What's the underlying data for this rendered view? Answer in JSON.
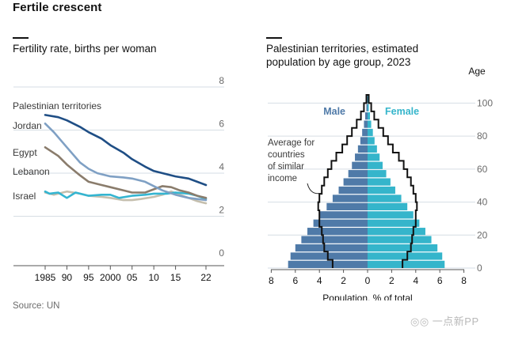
{
  "title": "Fertile crescent",
  "source": "Source: UN",
  "watermark": "◎◎ 一点新PP",
  "colors": {
    "palestinian": "#1f4e85",
    "jordan": "#7fa0c4",
    "egypt": "#8a7c6c",
    "lebanon": "#c5bfae",
    "israel": "#34b5d1",
    "male": "#4f7aa8",
    "female": "#35b5cb",
    "avg": "#111111",
    "grid": "#d6dee4",
    "text": "#121212",
    "axis_text": "#6b6b6b"
  },
  "chart_data": [
    {
      "type": "line",
      "title": "Fertility rate, births per woman",
      "x_tick_labels": [
        "1985",
        "90",
        "95",
        "2000",
        "05",
        "10",
        "15",
        "22"
      ],
      "x_tick_values": [
        1985,
        1990,
        1995,
        2000,
        2005,
        2010,
        2015,
        2022
      ],
      "xlim": [
        1985,
        2022
      ],
      "ylim": [
        0,
        8
      ],
      "y_ticks": [
        0,
        2,
        4,
        6,
        8
      ],
      "grid": true,
      "series": [
        {
          "name": "Palestinian territories",
          "key": "palestinian",
          "x": [
            1985,
            1988,
            1990,
            1993,
            1995,
            1998,
            2000,
            2003,
            2005,
            2008,
            2010,
            2013,
            2015,
            2018,
            2020,
            2022
          ],
          "y": [
            6.7,
            6.6,
            6.45,
            6.15,
            5.9,
            5.6,
            5.3,
            4.95,
            4.65,
            4.3,
            4.1,
            3.95,
            3.85,
            3.75,
            3.6,
            3.45
          ]
        },
        {
          "name": "Jordan",
          "key": "jordan",
          "x": [
            1985,
            1987,
            1990,
            1993,
            1995,
            1997,
            2000,
            2003,
            2005,
            2008,
            2010,
            2012,
            2015,
            2018,
            2020,
            2022
          ],
          "y": [
            6.3,
            5.9,
            5.2,
            4.5,
            4.2,
            4.0,
            3.85,
            3.8,
            3.75,
            3.6,
            3.4,
            3.2,
            3.0,
            2.85,
            2.8,
            2.75
          ]
        },
        {
          "name": "Egypt",
          "key": "egypt",
          "x": [
            1985,
            1988,
            1990,
            1993,
            1995,
            1998,
            2000,
            2003,
            2005,
            2008,
            2010,
            2012,
            2014,
            2016,
            2018,
            2020,
            2022
          ],
          "y": [
            5.2,
            4.8,
            4.4,
            3.9,
            3.6,
            3.45,
            3.35,
            3.2,
            3.1,
            3.1,
            3.25,
            3.4,
            3.35,
            3.2,
            3.1,
            2.95,
            2.85
          ]
        },
        {
          "name": "Lebanon",
          "key": "lebanon",
          "x": [
            1985,
            1987,
            1990,
            1993,
            1995,
            1998,
            2000,
            2003,
            2005,
            2007,
            2010,
            2012,
            2014,
            2016,
            2018,
            2020,
            2022
          ],
          "y": [
            3.1,
            3.0,
            3.15,
            3.05,
            2.95,
            2.9,
            2.85,
            2.75,
            2.75,
            2.8,
            2.9,
            3.0,
            3.15,
            3.0,
            2.85,
            2.7,
            2.6
          ]
        },
        {
          "name": "Israel",
          "key": "israel",
          "x": [
            1985,
            1986,
            1988,
            1990,
            1992,
            1995,
            1998,
            2000,
            2002,
            2005,
            2008,
            2010,
            2013,
            2015,
            2018,
            2020,
            2022
          ],
          "y": [
            3.15,
            3.05,
            3.1,
            2.85,
            3.1,
            2.95,
            3.0,
            3.0,
            2.85,
            2.95,
            3.0,
            3.05,
            3.05,
            3.1,
            3.05,
            2.95,
            2.8
          ]
        }
      ]
    },
    {
      "type": "population_pyramid",
      "title": "Palestinian territories, estimated population by age group, 2023",
      "y_axis_label": "Age",
      "y_tick_labels": [
        "0",
        "20",
        "40",
        "60",
        "80",
        "100"
      ],
      "y_tick_values": [
        0,
        20,
        40,
        60,
        80,
        100
      ],
      "x_tick_labels": [
        "8",
        "6",
        "4",
        "2",
        "0",
        "2",
        "4",
        "6",
        "8"
      ],
      "x_tick_values": [
        -8,
        -6,
        -4,
        -2,
        0,
        2,
        4,
        6,
        8
      ],
      "xlim": [
        -8,
        8
      ],
      "x_label": "Population, % of total",
      "male_label": "Male",
      "female_label": "Female",
      "annotation": [
        "Average for",
        "countries",
        "of similar",
        "income"
      ],
      "age_groups": [
        "0-4",
        "5-9",
        "10-14",
        "15-19",
        "20-24",
        "25-29",
        "30-34",
        "35-39",
        "40-44",
        "45-49",
        "50-54",
        "55-59",
        "60-64",
        "65-69",
        "70-74",
        "75-79",
        "80-84",
        "85-89",
        "90-94",
        "95-99",
        "100+"
      ],
      "male": [
        6.6,
        6.4,
        6.0,
        5.5,
        5.0,
        4.5,
        4.0,
        3.4,
        2.9,
        2.4,
        2.0,
        1.6,
        1.3,
        1.05,
        0.8,
        0.6,
        0.45,
        0.3,
        0.2,
        0.1,
        0.05
      ],
      "female": [
        6.4,
        6.2,
        5.8,
        5.3,
        4.8,
        4.3,
        3.8,
        3.3,
        2.8,
        2.3,
        1.9,
        1.55,
        1.25,
        1.0,
        0.78,
        0.58,
        0.44,
        0.3,
        0.2,
        0.1,
        0.05
      ],
      "average_comparator": [
        2.9,
        3.3,
        3.6,
        3.7,
        3.8,
        4.0,
        4.0,
        4.1,
        4.0,
        3.8,
        3.6,
        3.3,
        3.0,
        2.6,
        2.1,
        1.7,
        1.3,
        0.9,
        0.55,
        0.3,
        0.1
      ]
    }
  ]
}
